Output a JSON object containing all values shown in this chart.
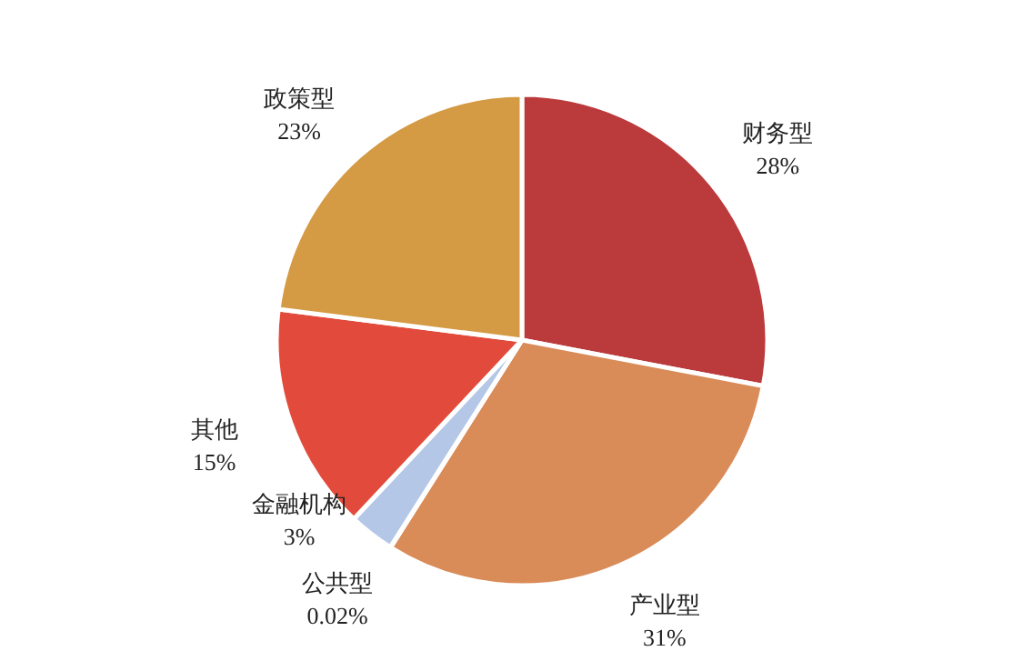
{
  "chart_data": {
    "type": "pie",
    "categories": [
      "财务型",
      "产业型",
      "公共型",
      "金融机构",
      "其他",
      "政策型"
    ],
    "values": [
      28,
      31,
      0.02,
      3,
      15,
      23
    ],
    "value_labels": [
      "28%",
      "31%",
      "0.02%",
      "3%",
      "15%",
      "23%"
    ],
    "colors": [
      "#bb3a3b",
      "#d98b58",
      "#d9d9d9",
      "#b4c7e7",
      "#e24b3b",
      "#d49a44"
    ]
  }
}
